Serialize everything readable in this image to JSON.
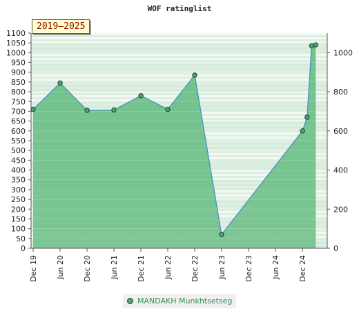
{
  "chart_data": {
    "type": "area",
    "title": "WOF ratinglist",
    "badge": "2019–2025",
    "x_ticks": [
      "Dec 19",
      "Jun 20",
      "Dec 20",
      "Jun 21",
      "Dec 21",
      "Jun 22",
      "Dec 22",
      "Jun 23",
      "Dec 23",
      "Jun 24",
      "Dec 24"
    ],
    "y_left_ticks": [
      0,
      50,
      100,
      150,
      200,
      250,
      300,
      350,
      400,
      450,
      500,
      550,
      600,
      650,
      700,
      750,
      800,
      850,
      900,
      950,
      1000,
      1050,
      1100
    ],
    "y_right_ticks": [
      0,
      200,
      400,
      600,
      800,
      1000
    ],
    "ylim": [
      0,
      1100
    ],
    "series": [
      {
        "name": "MANDAKH Munkhtsetseg",
        "color": "#54a276",
        "x": [
          "2019-12-01",
          "2020-06-01",
          "2020-12-01",
          "2021-06-01",
          "2021-12-01",
          "2022-06-01",
          "2022-12-01",
          "2023-06-01",
          "2024-12-01",
          "2025-01-01",
          "2025-02-01",
          "2025-03-01"
        ],
        "values": [
          710,
          845,
          705,
          707,
          780,
          710,
          885,
          70,
          600,
          670,
          1035,
          1040
        ]
      }
    ],
    "legend_position": "bottom"
  }
}
